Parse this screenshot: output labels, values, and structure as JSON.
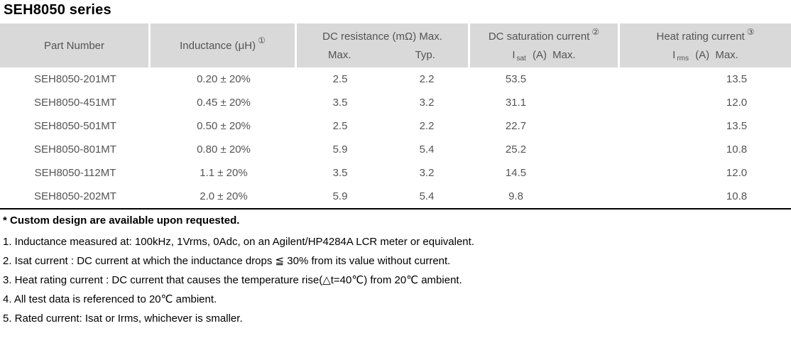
{
  "page": {
    "title": "SEH8050 series"
  },
  "colors": {
    "header_bg": "#d9d9d9",
    "table_text": "#545454",
    "note_text": "#000000",
    "table_bottom_border": "#000000"
  },
  "table": {
    "header": {
      "part_number": "Part Number",
      "inductance": "Inductance (μH)",
      "inductance_note_ref": "①",
      "dc_resistance": "DC resistance (mΩ) Max.",
      "dc_resistance_max": "Max.",
      "dc_resistance_typ": "Typ.",
      "saturation": "DC saturation current",
      "saturation_note_ref": "②",
      "saturation_sym_i": "I",
      "saturation_sym_sub": "sat",
      "saturation_sym_rest": "(A) Max.",
      "heat": "Heat rating current",
      "heat_note_ref": "③",
      "heat_sym_i": "I",
      "heat_sym_sub": "rms",
      "heat_sym_rest": "(A) Max."
    },
    "rows": [
      {
        "part": "SEH8050-201MT",
        "inductance": "0.20 ± 20%",
        "dcr_max": "2.5",
        "dcr_typ": "2.2",
        "isat": "53.5",
        "irms": "13.5"
      },
      {
        "part": "SEH8050-451MT",
        "inductance": "0.45 ± 20%",
        "dcr_max": "3.5",
        "dcr_typ": "3.2",
        "isat": "31.1",
        "irms": "12.0"
      },
      {
        "part": "SEH8050-501MT",
        "inductance": "0.50 ± 20%",
        "dcr_max": "2.5",
        "dcr_typ": "2.2",
        "isat": "22.7",
        "irms": "13.5"
      },
      {
        "part": "SEH8050-801MT",
        "inductance": "0.80 ± 20%",
        "dcr_max": "5.9",
        "dcr_typ": "5.4",
        "isat": "25.2",
        "irms": "10.8"
      },
      {
        "part": "SEH8050-112MT",
        "inductance": "1.1 ± 20%",
        "dcr_max": "3.5",
        "dcr_typ": "3.2",
        "isat": "14.5",
        "irms": "12.0"
      },
      {
        "part": "SEH8050-202MT",
        "inductance": "2.0 ± 20%",
        "dcr_max": "5.9",
        "dcr_typ": "5.4",
        "isat": "9.8",
        "irms": "10.8"
      }
    ]
  },
  "notes": {
    "custom": "* Custom design are available upon requested.",
    "items": [
      "1. Inductance measured at: 100kHz, 1Vrms, 0Adc, on an Agilent/HP4284A LCR meter or equivalent.",
      "2. Isat current : DC current at which the inductance drops ≦ 30% from its value without current.",
      "3. Heat rating current : DC current that causes the temperature rise(△t=40℃) from 20℃ ambient.",
      "4. All test data is referenced to 20℃ ambient.",
      "5. Rated current: Isat or Irms, whichever is smaller."
    ]
  }
}
